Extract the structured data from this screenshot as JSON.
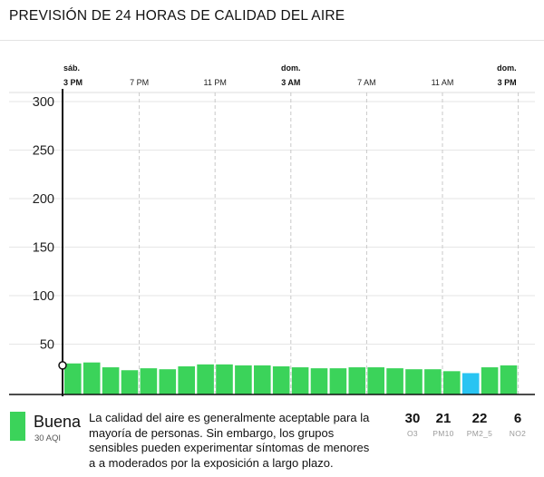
{
  "header": {
    "title": "PREVISIÓN DE 24 HORAS DE CALIDAD DEL AIRE"
  },
  "colors": {
    "good": "#3bd35a",
    "current": "#29c4f2",
    "grid": "#c9c9c9",
    "axis": "#111111"
  },
  "chart_data": {
    "type": "bar",
    "title": "PREVISIÓN DE 24 HORAS DE CALIDAD DEL AIRE",
    "ylim": [
      0,
      300
    ],
    "y_ticks": [
      "300",
      "250",
      "200",
      "150",
      "100",
      "50"
    ],
    "x_ticks": [
      {
        "day": "sáb.",
        "time": "3 PM",
        "bold": true
      },
      {
        "day": "",
        "time": "7 PM",
        "bold": false
      },
      {
        "day": "",
        "time": "11 PM",
        "bold": false
      },
      {
        "day": "dom.",
        "time": "3 AM",
        "bold": true
      },
      {
        "day": "",
        "time": "7 AM",
        "bold": false
      },
      {
        "day": "",
        "time": "11 AM",
        "bold": false
      },
      {
        "day": "dom.",
        "time": "3 PM",
        "bold": true
      }
    ],
    "current_value": 30,
    "values": [
      32,
      33,
      28,
      25,
      27,
      26,
      29,
      31,
      31,
      30,
      30,
      29,
      28,
      27,
      27,
      28,
      28,
      27,
      26,
      26,
      24,
      22,
      28,
      30
    ],
    "highlight_index": 21,
    "grid": "vertical dashed"
  },
  "legend": {
    "status": "Buena",
    "aqi": "30 AQI",
    "description": "La calidad del aire es generalmente aceptable para la mayoría de personas. Sin embargo, los grupos sensibles pueden experimentar síntomas de menores a a moderados por la exposición a largo plazo.",
    "pollutants": [
      {
        "value": "30",
        "name": "O3"
      },
      {
        "value": "21",
        "name": "PM10"
      },
      {
        "value": "22",
        "name": "PM2_5"
      },
      {
        "value": "6",
        "name": "NO2"
      }
    ]
  }
}
